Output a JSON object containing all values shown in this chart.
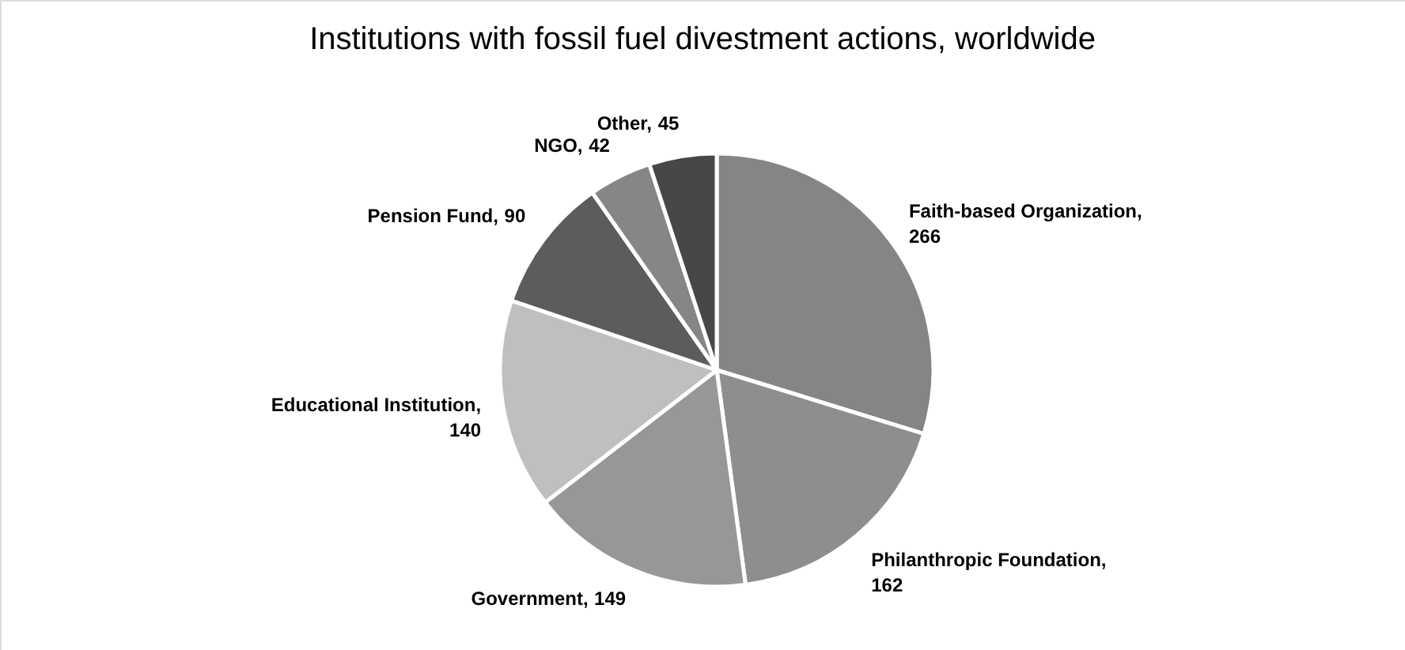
{
  "chart_data": {
    "type": "pie",
    "title": "Institutions with fossil fuel divestment actions, worldwide",
    "categories": [
      "Faith-based Organization",
      "Philanthropic Foundation",
      "Government",
      "Educational Institution",
      "Pension Fund",
      "NGO",
      "Other"
    ],
    "values": [
      266,
      162,
      149,
      140,
      90,
      42,
      45
    ],
    "colors": [
      "#858585",
      "#8e8e8e",
      "#979797",
      "#bfbfbf",
      "#5c5c5c",
      "#868686",
      "#474747"
    ],
    "value_labels": [
      ", 266",
      ", 162",
      ", 149",
      ", 140",
      ", 90",
      ", 42",
      ", 45"
    ],
    "legend": false
  }
}
